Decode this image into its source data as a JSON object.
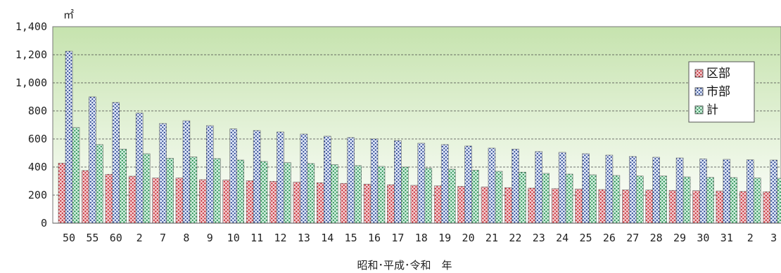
{
  "chart_data": {
    "type": "bar",
    "ylabel": "㎡",
    "xlabel": "昭和･平成･令和　年",
    "ylim": [
      0,
      1400
    ],
    "yticks": [
      "0",
      "200",
      "400",
      "600",
      "800",
      "1,000",
      "1,200",
      "1,400"
    ],
    "grid": true,
    "legend": "right",
    "categories": [
      "50",
      "55",
      "60",
      "2",
      "7",
      "8",
      "9",
      "10",
      "11",
      "12",
      "13",
      "14",
      "15",
      "16",
      "17",
      "18",
      "19",
      "20",
      "21",
      "22",
      "23",
      "24",
      "25",
      "26",
      "27",
      "28",
      "29",
      "30",
      "31",
      "2",
      "3"
    ],
    "series": [
      {
        "name": "区部",
        "color": "#c0222a",
        "values": [
          428,
          375,
          348,
          335,
          322,
          322,
          310,
          308,
          303,
          298,
          293,
          288,
          284,
          279,
          274,
          270,
          266,
          262,
          258,
          254,
          250,
          246,
          244,
          240,
          237,
          236,
          234,
          232,
          230,
          226,
          224
        ]
      },
      {
        "name": "市部",
        "color": "#1f3a8a",
        "values": [
          1225,
          900,
          860,
          785,
          710,
          730,
          695,
          672,
          660,
          650,
          635,
          620,
          610,
          600,
          588,
          570,
          560,
          550,
          535,
          528,
          510,
          505,
          495,
          485,
          475,
          470,
          465,
          458,
          455,
          452,
          450
        ]
      },
      {
        "name": "計",
        "color": "#1f8a4a",
        "values": [
          682,
          560,
          528,
          495,
          462,
          472,
          460,
          450,
          440,
          432,
          425,
          418,
          410,
          405,
          400,
          392,
          385,
          378,
          370,
          364,
          355,
          350,
          345,
          340,
          336,
          336,
          330,
          326,
          325,
          322,
          320
        ]
      }
    ]
  }
}
